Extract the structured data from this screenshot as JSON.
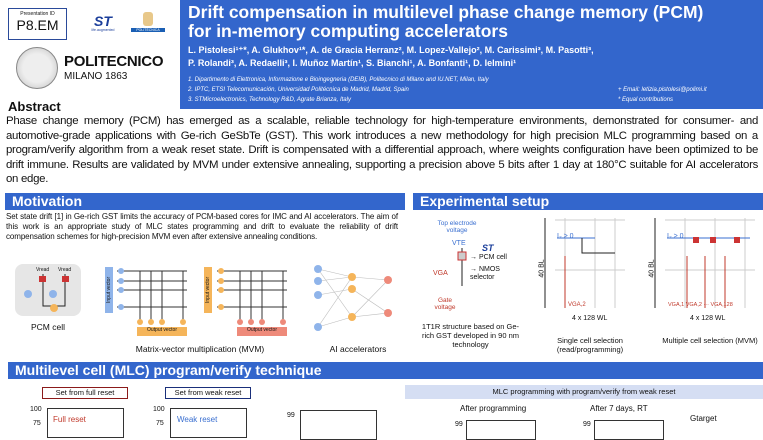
{
  "header": {
    "presentation_id_label": "Presentation ID",
    "presentation_id": "P8.EM",
    "logos": {
      "st": "life.augmented",
      "upm": "POLITÉCNICA",
      "polimi_name": "POLITECNICO",
      "polimi_sub": "MILANO 1863"
    },
    "title_line1": "Drift compensation in multilevel phase change memory (PCM)",
    "title_line2": "for in-memory computing accelerators",
    "authors_line1": "L. Pistolesi¹⁺*, A. Glukhov¹*, A. de Gracia Herranz², M. Lopez-Vallejo², M. Carissimi³, M. Pasotti³,",
    "authors_line2": "P. Rolandi³, A. Redaelli³, I. Muñoz Martín¹, S. Bianchi¹, A. Bonfanti¹, D. Ielmini¹",
    "affiliations": [
      "1. Dipartimento di Elettronica, Informazione e Bioingegneria (DEIB), Politecnico di Milano and IU.NET, Milan, Italy",
      "2. IPTC, ETSI Telecomunicación, Universidad Politécnica de Madrid, Madrid, Spain",
      "3. STMicroelectronics, Technology R&D, Agrate Brianza, Italy"
    ],
    "email": "+ Email: letizia.pistolesi@polimi.it",
    "equal": "* Equal contributions"
  },
  "abstract": {
    "heading": "Abstract",
    "text": "Phase change memory (PCM) has emerged as a scalable, reliable technology for high-temperature environments, demonstrated for consumer- and automotive-grade applications with Ge-rich GeSbTe (GST). This work introduces a new methodology for high precision MLC programming based on a program/verify algorithm from a weak reset state. Drift is compensated with a differential approach, where weights configuration have been optimized to be drift immune. Results are validated by MVM under extensive annealing, supporting a precision above 5 bits after 1 day at 180°C suitable for AI accelerators on edge."
  },
  "motivation": {
    "heading": "Motivation",
    "text": "Set state drift [1] in Ge-rich GST limits the accuracy of PCM-based cores for IMC and AI accelerators. The aim of this work is an appropriate study of MLC states programming and drift to evaluate the reliability of drift compensation schemes for high-precision MVM even after extensive annealing conditions.",
    "captions": {
      "pcm": "PCM cell",
      "mvm": "Matrix-vector multiplication (MVM)",
      "ai": "AI accelerators"
    },
    "labels": {
      "input": "Input vector",
      "output": "Output vector",
      "vread": "Vread"
    }
  },
  "setup": {
    "heading": "Experimental setup",
    "labels": {
      "top": "Top electrode voltage",
      "vte": "VTE",
      "pcm": "→ PCM cell",
      "vga": "VGA",
      "nmos": "→ NMOS selector",
      "gate": "Gate voltage",
      "i2": "I₂ > 0",
      "bl": "40 BL",
      "wl": "4 x 128 WL",
      "vga2": "VGA,2",
      "vgam": "VGA,1 VGA,2 ··· VGA,128"
    },
    "captions": {
      "c1": "1T1R structure based on Ge-rich GST developed in 90 nm technology",
      "c2": "Single cell selection (read/programming)",
      "c3": "Multiple cell selection (MVM)"
    }
  },
  "mlc": {
    "heading": "Multilevel cell (MLC) program/verify technique",
    "box_full": "Set from full reset",
    "box_weak": "Set from weak reset",
    "full_label": "Full reset",
    "weak_label": "Weak reset",
    "banner": "MLC programming with program/verify from weak reset",
    "after_prog": "After programming",
    "after_7d": "After 7 days, RT",
    "gtarget": "Gtarget",
    "ticks": {
      "y100": "100",
      "y75": "75",
      "y99": "99"
    }
  },
  "colors": {
    "accent": "#3366cc",
    "red": "#c0392b",
    "node_blue": "#8fb4ea",
    "node_orange": "#f5b55a",
    "node_red": "#ee8a7a"
  }
}
